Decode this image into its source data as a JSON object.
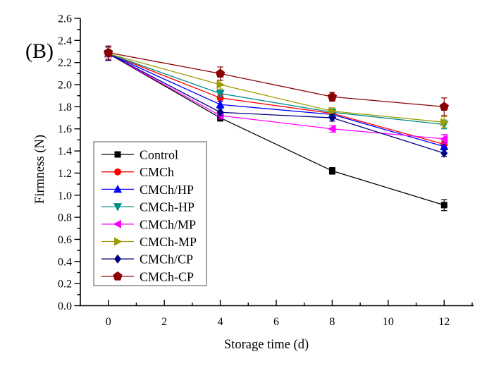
{
  "chart_data": {
    "type": "line",
    "panel_label": "(B)",
    "title": "",
    "xlabel": "Storage time (d)",
    "ylabel": "Firmness (N)",
    "x": [
      0,
      4,
      8,
      12
    ],
    "xlim": [
      -1,
      13
    ],
    "ylim": [
      0.0,
      2.6
    ],
    "x_major_ticks": [
      0,
      2,
      4,
      6,
      8,
      10,
      12
    ],
    "x_minor_ticks": [
      1,
      3,
      5,
      7,
      9,
      11,
      13
    ],
    "y_major_ticks": [
      0.0,
      0.2,
      0.4,
      0.6,
      0.8,
      1.0,
      1.2,
      1.4,
      1.6,
      1.8,
      2.0,
      2.2,
      2.4,
      2.6
    ],
    "y_minor_ticks": [
      0.1,
      0.3,
      0.5,
      0.7,
      0.9,
      1.1,
      1.3,
      1.5,
      1.7,
      1.9,
      2.1,
      2.3,
      2.5
    ],
    "grid": false,
    "error_bars": true,
    "legend_position": "inside-lower-left",
    "series": [
      {
        "name": "Control",
        "color": "#000000",
        "marker": "square",
        "values": [
          2.28,
          1.7,
          1.22,
          0.91
        ],
        "errors": [
          0.06,
          0.03,
          0.03,
          0.05
        ]
      },
      {
        "name": "CMCh",
        "color": "#FF0000",
        "marker": "circle",
        "values": [
          2.28,
          1.88,
          1.74,
          1.46
        ],
        "errors": [
          0.06,
          0.03,
          0.03,
          0.03
        ]
      },
      {
        "name": "CMCh/HP",
        "color": "#0000FF",
        "marker": "triangle-up",
        "values": [
          2.28,
          1.82,
          1.73,
          1.44
        ],
        "errors": [
          0.06,
          0.03,
          0.03,
          0.03
        ]
      },
      {
        "name": "CMCh-HP",
        "color": "#008B8B",
        "marker": "triangle-down",
        "values": [
          2.28,
          1.92,
          1.75,
          1.64
        ],
        "errors": [
          0.06,
          0.03,
          0.03,
          0.04
        ]
      },
      {
        "name": "CMCh/MP",
        "color": "#FF00FF",
        "marker": "triangle-left",
        "values": [
          2.28,
          1.72,
          1.6,
          1.51
        ],
        "errors": [
          0.06,
          0.03,
          0.03,
          0.04
        ]
      },
      {
        "name": "CMCh-MP",
        "color": "#9C9C00",
        "marker": "triangle-right",
        "values": [
          2.28,
          2.0,
          1.76,
          1.66
        ],
        "errors": [
          0.06,
          0.04,
          0.03,
          0.05
        ]
      },
      {
        "name": "CMCh/CP",
        "color": "#000080",
        "marker": "diamond",
        "values": [
          2.28,
          1.75,
          1.7,
          1.38
        ],
        "errors": [
          0.06,
          0.03,
          0.03,
          0.03
        ]
      },
      {
        "name": "CMCh-CP",
        "color": "#8B0000",
        "marker": "pentagon",
        "values": [
          2.29,
          2.1,
          1.89,
          1.8
        ],
        "errors": [
          0.06,
          0.06,
          0.04,
          0.08
        ]
      }
    ]
  }
}
